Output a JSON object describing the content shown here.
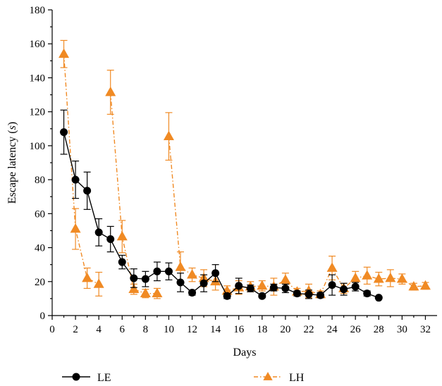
{
  "chart_data": {
    "type": "line",
    "xlabel": "Days",
    "ylabel": "Escape latency (s)",
    "ylabel_parts": [
      "Escape latency (",
      "s",
      ")"
    ],
    "xlim": [
      0,
      33
    ],
    "ylim": [
      0,
      180
    ],
    "xticks": [
      0,
      2,
      4,
      6,
      8,
      10,
      12,
      14,
      16,
      18,
      20,
      22,
      24,
      26,
      28,
      30,
      32
    ],
    "yticks": [
      0,
      20,
      40,
      60,
      80,
      100,
      120,
      140,
      160,
      180
    ],
    "legend_position": "bottom",
    "series": [
      {
        "name": "LE",
        "color": "#000000",
        "marker": "circle",
        "line_style": "solid",
        "points": [
          {
            "x": 1,
            "y": 108,
            "err": 13
          },
          {
            "x": 2,
            "y": 80,
            "err": 11
          },
          {
            "x": 3,
            "y": 73.5,
            "err": 11
          },
          {
            "x": 4,
            "y": 49,
            "err": 8
          },
          {
            "x": 5,
            "y": 45,
            "err": 7.5
          },
          {
            "x": 6,
            "y": 31.5,
            "err": 4
          },
          {
            "x": 7,
            "y": 22,
            "err": 5.5
          },
          {
            "x": 8,
            "y": 21.5,
            "err": 4.5
          },
          {
            "x": 9,
            "y": 26,
            "err": 5.5
          },
          {
            "x": 10,
            "y": 26,
            "err": 5
          },
          {
            "x": 11,
            "y": 19.5,
            "err": 5.5
          },
          {
            "x": 12,
            "y": 13.5,
            "err": 1.5
          },
          {
            "x": 13,
            "y": 19,
            "err": 5
          },
          {
            "x": 14,
            "y": 25,
            "err": 5
          },
          {
            "x": 15,
            "y": 11.5,
            "err": 1.5
          },
          {
            "x": 16,
            "y": 17.5,
            "err": 4.5
          },
          {
            "x": 17,
            "y": 16,
            "err": 2
          },
          {
            "x": 18,
            "y": 11.5,
            "err": 1
          },
          {
            "x": 19,
            "y": 16.5,
            "err": 2
          },
          {
            "x": 20,
            "y": 16,
            "err": 2.5
          },
          {
            "x": 21,
            "y": 13,
            "err": 1.5
          },
          {
            "x": 22,
            "y": 12.5,
            "err": 2.5
          },
          {
            "x": 23,
            "y": 12,
            "err": 1.5
          },
          {
            "x": 24,
            "y": 18,
            "err": 6
          },
          {
            "x": 25,
            "y": 15.5,
            "err": 3.5
          },
          {
            "x": 26,
            "y": 17,
            "err": 2.5
          },
          {
            "x": 27,
            "y": 13,
            "err": 1.5
          },
          {
            "x": 28,
            "y": 10.5,
            "err": 0
          }
        ]
      },
      {
        "name": "LH",
        "color": "#F08A24",
        "marker": "triangle",
        "line_style": "dash-dot",
        "segments": [
          [
            {
              "x": 1,
              "y": 154,
              "err": 8
            },
            {
              "x": 2,
              "y": 51,
              "err": 12
            },
            {
              "x": 3,
              "y": 22,
              "err": 6
            },
            {
              "x": 4,
              "y": 18.5,
              "err": 7
            }
          ],
          [
            {
              "x": 5,
              "y": 131.5,
              "err": 13
            },
            {
              "x": 6,
              "y": 46.5,
              "err": 9.5
            },
            {
              "x": 7,
              "y": 15.5,
              "err": 3
            },
            {
              "x": 8,
              "y": 13,
              "err": 2.5
            },
            {
              "x": 9,
              "y": 13,
              "err": 3
            }
          ],
          [
            {
              "x": 10,
              "y": 105.5,
              "err": 14
            },
            {
              "x": 11,
              "y": 28.5,
              "err": 9
            },
            {
              "x": 12,
              "y": 24,
              "err": 4
            },
            {
              "x": 13,
              "y": 22,
              "err": 5
            },
            {
              "x": 14,
              "y": 20,
              "err": 5
            },
            {
              "x": 15,
              "y": 14.5,
              "err": 3
            },
            {
              "x": 16,
              "y": 16.5,
              "err": 4
            },
            {
              "x": 17,
              "y": 17,
              "err": 3
            },
            {
              "x": 18,
              "y": 17.5,
              "err": 3
            },
            {
              "x": 19,
              "y": 17,
              "err": 5
            },
            {
              "x": 20,
              "y": 21,
              "err": 4
            },
            {
              "x": 21,
              "y": 14,
              "err": 2
            },
            {
              "x": 22,
              "y": 14.5,
              "err": 4
            },
            {
              "x": 23,
              "y": 12.5,
              "err": 2
            },
            {
              "x": 24,
              "y": 28,
              "err": 7
            },
            {
              "x": 25,
              "y": 16,
              "err": 3
            },
            {
              "x": 26,
              "y": 22,
              "err": 4
            },
            {
              "x": 27,
              "y": 23.5,
              "err": 5
            },
            {
              "x": 28,
              "y": 21.5,
              "err": 4
            },
            {
              "x": 29,
              "y": 22,
              "err": 5
            },
            {
              "x": 30,
              "y": 21.5,
              "err": 3
            },
            {
              "x": 31,
              "y": 17,
              "err": 2
            },
            {
              "x": 32,
              "y": 17.5,
              "err": 2
            }
          ]
        ]
      }
    ]
  }
}
